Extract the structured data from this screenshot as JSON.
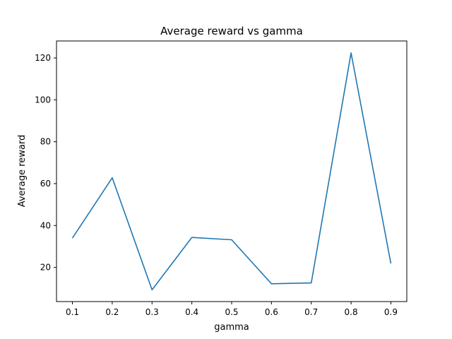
{
  "chart_data": {
    "type": "line",
    "title": "Average reward vs gamma",
    "xlabel": "gamma",
    "ylabel": "Average reward",
    "x": [
      0.1,
      0.2,
      0.3,
      0.4,
      0.5,
      0.6,
      0.7,
      0.8,
      0.9
    ],
    "series": [
      {
        "values": [
          34,
          62.8,
          9.3,
          34.3,
          33.2,
          12.2,
          12.6,
          122.4,
          21.9
        ],
        "color": "#1f77b4"
      }
    ],
    "xlim": [
      0.06,
      0.94
    ],
    "ylim": [
      3.7,
      128.1
    ],
    "xticks": [
      "0.1",
      "0.2",
      "0.3",
      "0.4",
      "0.5",
      "0.6",
      "0.7",
      "0.8",
      "0.9"
    ],
    "yticks": [
      "20",
      "40",
      "60",
      "80",
      "100",
      "120"
    ],
    "grid": false,
    "legend": "none"
  }
}
